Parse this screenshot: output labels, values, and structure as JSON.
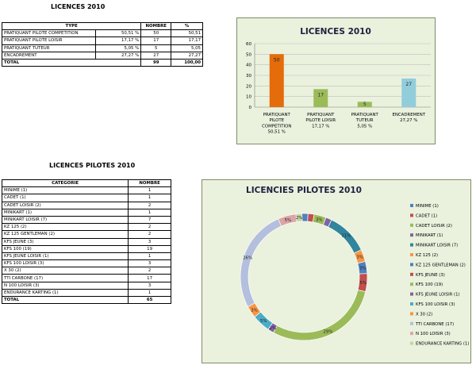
{
  "table1": {
    "title": "LICENCES 2010",
    "headers": [
      "TYPE",
      "NOMBRE",
      "%"
    ],
    "rows": [
      {
        "type": "PRATIQUANT PILOTE COMPETITION",
        "pct_label": "50,51 %",
        "nombre": "50",
        "pct": "50,51"
      },
      {
        "type": "PRATIQUANT PILOTE LOISIR",
        "pct_label": "17,17 %",
        "nombre": "17",
        "pct": "17,17"
      },
      {
        "type": "PRATIQUANT TUTEUR",
        "pct_label": "5,05 %",
        "nombre": "5",
        "pct": "5,05"
      },
      {
        "type": "ENCADREMENT",
        "pct_label": "27,27 %",
        "nombre": "27",
        "pct": "27,27"
      }
    ],
    "total": {
      "label": "TOTAL",
      "nombre": "99",
      "pct": "100,00"
    }
  },
  "table2": {
    "title": "LICENCES PILOTES 2010",
    "headers": [
      "CATEGORIE",
      "NOMBRE"
    ],
    "rows": [
      {
        "cat": "MINIME (1)",
        "n": "1"
      },
      {
        "cat": "CADET (1)",
        "n": "1"
      },
      {
        "cat": "CADET LOISIR (2)",
        "n": "2"
      },
      {
        "cat": "MINIKART (1)",
        "n": "1"
      },
      {
        "cat": "MINIKART LOISIR (7)",
        "n": "7"
      },
      {
        "cat": "KZ 125 (2)",
        "n": "2"
      },
      {
        "cat": "KZ 125 GENTLEMAN (2)",
        "n": "2"
      },
      {
        "cat": "KFS JEUNE (3)",
        "n": "3"
      },
      {
        "cat": "KFS 100 (19)",
        "n": "19"
      },
      {
        "cat": "KFS JEUNE LOISIR (1)",
        "n": "1"
      },
      {
        "cat": "KFS 100 LOISIR (3)",
        "n": "3"
      },
      {
        "cat": "X 30 (2)",
        "n": "2"
      },
      {
        "cat": "TTI CARBONE (17)",
        "n": "17"
      },
      {
        "cat": "N 100 LOISIR (3)",
        "n": "3"
      },
      {
        "cat": "ENDURANCE KARTING (1)",
        "n": "1"
      }
    ],
    "total": {
      "label": "TOTAL",
      "n": "65"
    }
  },
  "chart_data": [
    {
      "type": "bar",
      "title": "LICENCES 2010",
      "categories": [
        [
          "PRATIQUANT",
          "PILOTE",
          "COMPETITION",
          "50,51 %"
        ],
        [
          "PRATIQUANT",
          "PILOTE LOISIR",
          "17,17 %"
        ],
        [
          "PRATIQUANT",
          "TUTEUR",
          "5,05 %"
        ],
        [
          "ENCADREMENT",
          "27,27 %"
        ]
      ],
      "values": [
        50,
        17,
        5,
        27
      ],
      "data_labels": [
        "50",
        "17",
        "5",
        "27"
      ],
      "colors": [
        "#e46c0a",
        "#9bbb59",
        "#9bbb59",
        "#92cddc"
      ],
      "ylim": [
        0,
        60
      ],
      "yticks": [
        "0",
        "10",
        "20",
        "30",
        "40",
        "50",
        "60"
      ],
      "grid": true
    },
    {
      "type": "pie",
      "title": "LICENCIES PILOTES  2010",
      "donut": true,
      "labels": [
        "MINIME (1)",
        "CADET (1)",
        "CADET LOISIR (2)",
        "MINIKART (1)",
        "MINIKART LOISIR (7)",
        "KZ 125 (2)",
        "KZ 125 GENTLEMAN (2)",
        "KFS JEUNE (3)",
        "KFS 100 (19)",
        "KFS JEUNE LOISIR (1)",
        "KFS 100 LOISIR (3)",
        "X 30 (2)",
        "TTI CARBONE (17)",
        "N 100 LOISIR (3)",
        "ENDURANCE KARTING (1)"
      ],
      "values": [
        1,
        1,
        2,
        1,
        7,
        2,
        2,
        3,
        19,
        1,
        3,
        2,
        17,
        3,
        1
      ],
      "slice_labels": [
        "",
        "",
        "3%",
        "",
        "11%",
        "3%",
        "3%",
        "5%",
        "29%",
        "2%",
        "5%",
        "3%",
        "26%",
        "5%",
        "2%"
      ],
      "colors": [
        "#4f81bd",
        "#c0504d",
        "#9bbb59",
        "#8064a2",
        "#31859c",
        "#f79646",
        "#4f81bd",
        "#c0504d",
        "#9bbb59",
        "#8064a2",
        "#4bacc6",
        "#f79646",
        "#b3bfdd",
        "#dca5a5",
        "#c3d69b"
      ],
      "legend": "right"
    }
  ]
}
